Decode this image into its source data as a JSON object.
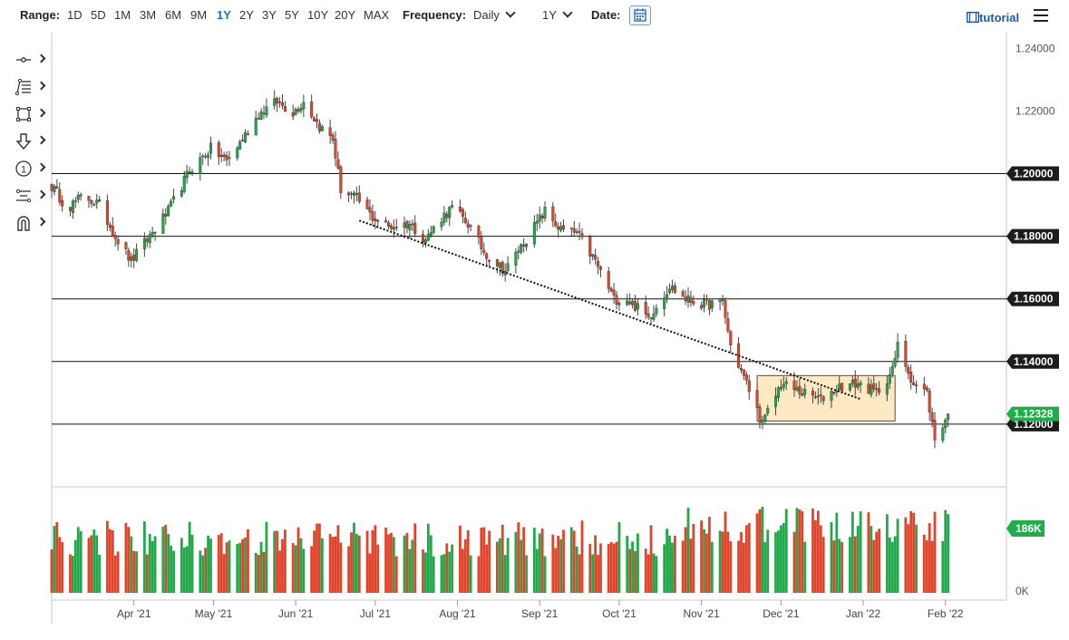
{
  "toolbar": {
    "range_label": "Range:",
    "ranges": [
      "1D",
      "5D",
      "1M",
      "3M",
      "6M",
      "9M",
      "1Y",
      "2Y",
      "3Y",
      "5Y",
      "10Y",
      "20Y",
      "MAX"
    ],
    "active_range": "1Y",
    "frequency_label": "Frequency:",
    "frequency_value": "Daily",
    "period_value": "1Y",
    "date_label": "Date:",
    "tutorial_label": "tutorial"
  },
  "icons": {
    "calendar": "calendar-icon",
    "film": "film-icon",
    "menu": "hamburger-menu-icon"
  },
  "tools": [
    "crosshair-line-tool",
    "fibonacci-tool",
    "rectangle-tool",
    "arrow-down-tool",
    "count-marker-tool",
    "parallel-lines-tool",
    "magnet-tool"
  ],
  "tool_glyphs": {
    "count-marker-tool": "1"
  },
  "colors": {
    "up": "#22a84a",
    "down": "#e0452b",
    "box_fill": "#fde9c4",
    "label_bg": "#1c1c1c",
    "current_bg": "#20ad4b"
  },
  "chart_data": {
    "type": "candlestick",
    "price_axis": {
      "min": 1.1,
      "max": 1.245,
      "ticks": [
        1.24,
        1.22,
        1.2,
        1.18,
        1.16,
        1.14,
        1.12
      ],
      "tick_labels": [
        "1.24000",
        "1.22000",
        "1.20000",
        "1.18000",
        "1.16000",
        "1.14000",
        "1.12000"
      ]
    },
    "horizontal_levels": [
      {
        "value": 1.2,
        "label": "1.20000"
      },
      {
        "value": 1.18,
        "label": "1.18000"
      },
      {
        "value": 1.16,
        "label": "1.16000"
      },
      {
        "value": 1.14,
        "label": "1.14000"
      },
      {
        "value": 1.12,
        "label": "1.12000"
      }
    ],
    "current_price": {
      "value": 1.12328,
      "label": "1.12328"
    },
    "volume_axis": {
      "tick_labels": [
        "0K"
      ],
      "current_label": "186K",
      "current_value": 186
    },
    "x_labels": [
      "Apr '21",
      "May '21",
      "Jun '21",
      "Jul '21",
      "Aug '21",
      "Sep '21",
      "Oct '21",
      "Nov '21",
      "Dec '21",
      "Jan '22",
      "Feb '22"
    ],
    "x_label_dates": [
      "2021-04-01",
      "2021-05-01",
      "2021-06-01",
      "2021-07-01",
      "2021-08-01",
      "2021-09-01",
      "2021-10-01",
      "2021-11-01",
      "2021-12-01",
      "2022-01-01",
      "2022-02-01"
    ],
    "x_range": [
      "2021-03-01",
      "2022-02-24"
    ],
    "trendline": {
      "from": {
        "date": "2021-06-25",
        "price": 1.185
      },
      "to": {
        "date": "2021-12-31",
        "price": 1.128
      }
    },
    "consolidation_box": {
      "from": "2021-11-22",
      "to": "2022-01-13",
      "low": 1.121,
      "high": 1.1355
    },
    "anchors": [
      [
        "2021-03-01",
        1.196
      ],
      [
        "2021-03-07",
        1.189
      ],
      [
        "2021-03-13",
        1.193
      ],
      [
        "2021-03-19",
        1.19
      ],
      [
        "2021-03-25",
        1.18
      ],
      [
        "2021-03-31",
        1.172
      ],
      [
        "2021-04-06",
        1.179
      ],
      [
        "2021-04-14",
        1.188
      ],
      [
        "2021-04-22",
        1.201
      ],
      [
        "2021-04-30",
        1.208
      ],
      [
        "2021-05-06",
        1.204
      ],
      [
        "2021-05-12",
        1.211
      ],
      [
        "2021-05-18",
        1.219
      ],
      [
        "2021-05-25",
        1.223
      ],
      [
        "2021-05-31",
        1.2195
      ],
      [
        "2021-06-04",
        1.223
      ],
      [
        "2021-06-10",
        1.215
      ],
      [
        "2021-06-15",
        1.211
      ],
      [
        "2021-06-18",
        1.195
      ],
      [
        "2021-06-24",
        1.192
      ],
      [
        "2021-06-30",
        1.186
      ],
      [
        "2021-07-06",
        1.183
      ],
      [
        "2021-07-14",
        1.184
      ],
      [
        "2021-07-20",
        1.179
      ],
      [
        "2021-07-26",
        1.186
      ],
      [
        "2021-07-30",
        1.189
      ],
      [
        "2021-08-05",
        1.184
      ],
      [
        "2021-08-11",
        1.175
      ],
      [
        "2021-08-19",
        1.169
      ],
      [
        "2021-08-26",
        1.178
      ],
      [
        "2021-09-03",
        1.188
      ],
      [
        "2021-09-09",
        1.182
      ],
      [
        "2021-09-15",
        1.181
      ],
      [
        "2021-09-22",
        1.172
      ],
      [
        "2021-09-29",
        1.16
      ],
      [
        "2021-10-04",
        1.16
      ],
      [
        "2021-10-12",
        1.154
      ],
      [
        "2021-10-20",
        1.164
      ],
      [
        "2021-10-26",
        1.16
      ],
      [
        "2021-11-02",
        1.158
      ],
      [
        "2021-11-09",
        1.159
      ],
      [
        "2021-11-12",
        1.145
      ],
      [
        "2021-11-19",
        1.131
      ],
      [
        "2021-11-24",
        1.12
      ],
      [
        "2021-12-01",
        1.133
      ],
      [
        "2021-12-09",
        1.13
      ],
      [
        "2021-12-16",
        1.128
      ],
      [
        "2021-12-23",
        1.132
      ],
      [
        "2021-12-30",
        1.133
      ],
      [
        "2022-01-06",
        1.13
      ],
      [
        "2022-01-12",
        1.137
      ],
      [
        "2022-01-14",
        1.145
      ],
      [
        "2022-01-20",
        1.133
      ],
      [
        "2022-01-25",
        1.13
      ],
      [
        "2022-01-28",
        1.115
      ],
      [
        "2022-02-02",
        1.1233
      ]
    ]
  }
}
